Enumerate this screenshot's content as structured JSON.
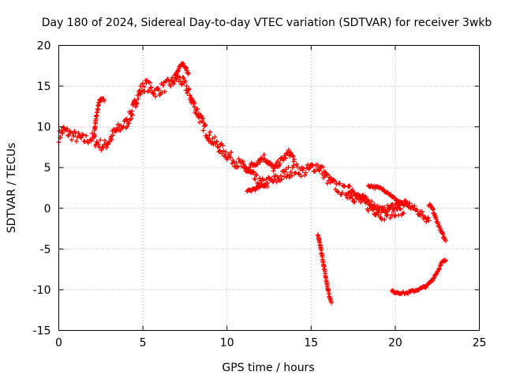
{
  "chart_data": {
    "type": "scatter",
    "title": "Day 180 of 2024, Sidereal Day-to-day VTEC variation (SDTVAR) for receiver 3wkb",
    "xlabel": "GPS time / hours",
    "ylabel": "SDTVAR / TECUs",
    "xlim": [
      0,
      25
    ],
    "ylim": [
      -15,
      20
    ],
    "xticks": [
      0,
      5,
      10,
      15,
      20,
      25
    ],
    "yticks": [
      -15,
      -10,
      -5,
      0,
      5,
      10,
      15,
      20
    ],
    "grid": true,
    "marker": "+",
    "color": "#ff0000",
    "series": [
      {
        "name": "main-trace",
        "x": [
          0.0,
          0.3,
          0.6,
          1.0,
          1.5,
          2.0,
          2.3,
          2.7,
          3.0,
          3.3,
          3.7,
          4.0,
          4.3,
          4.6,
          4.9,
          5.2,
          5.5,
          5.8,
          6.1,
          6.4,
          6.7,
          7.0,
          7.3,
          7.6,
          7.9,
          8.2,
          8.5,
          8.8,
          9.1,
          9.4,
          9.7,
          10.0,
          10.3,
          10.6,
          10.9,
          11.2,
          11.5,
          11.8,
          12.1,
          12.4,
          12.7,
          13.0,
          13.3,
          13.6,
          13.9,
          14.2,
          14.5,
          14.8,
          15.1,
          15.4,
          15.7,
          16.0,
          16.3,
          16.6,
          16.9,
          17.2,
          17.5,
          17.8,
          18.1,
          18.4,
          18.7,
          19.0,
          19.3,
          19.6,
          19.9,
          20.2,
          20.5
        ],
        "y": [
          8.8,
          9.6,
          9.2,
          8.8,
          8.4,
          8.6,
          8.0,
          7.6,
          8.3,
          9.3,
          10.0,
          10.4,
          11.5,
          13.3,
          14.6,
          15.2,
          14.6,
          14.3,
          14.7,
          15.1,
          15.4,
          16.0,
          15.6,
          14.8,
          13.3,
          12.0,
          10.6,
          9.3,
          8.4,
          7.8,
          7.2,
          6.6,
          6.1,
          5.6,
          5.2,
          4.6,
          4.0,
          3.3,
          3.0,
          3.2,
          3.3,
          3.6,
          4.0,
          4.4,
          4.7,
          4.8,
          4.5,
          4.7,
          5.1,
          5.2,
          4.5,
          3.5,
          3.0,
          2.5,
          2.2,
          1.9,
          1.5,
          1.1,
          0.7,
          0.3,
          -0.1,
          -0.4,
          -0.8,
          -0.6,
          -0.3,
          -0.5,
          -0.6
        ],
        "spread": 1.4
      },
      {
        "name": "spike-2-5h",
        "x": [
          2.1,
          2.25,
          2.4,
          2.55,
          2.7
        ],
        "y": [
          9.0,
          11.5,
          13.0,
          13.6,
          13.2
        ],
        "spread": 0.4
      },
      {
        "name": "spike-7-3h",
        "x": [
          6.9,
          7.1,
          7.3,
          7.5,
          7.7
        ],
        "y": [
          16.0,
          17.0,
          17.8,
          17.4,
          16.5
        ],
        "spread": 0.5
      },
      {
        "name": "upper-branch-12h",
        "x": [
          11.0,
          11.3,
          11.6,
          11.9,
          12.2,
          12.5,
          12.8,
          13.1,
          13.4,
          13.7,
          14.0
        ],
        "y": [
          4.9,
          5.1,
          5.4,
          5.9,
          6.3,
          5.5,
          4.8,
          5.6,
          6.2,
          6.9,
          6.0
        ],
        "spread": 0.8
      },
      {
        "name": "low-branch-11h",
        "x": [
          11.2,
          11.5,
          11.8,
          12.1,
          12.4
        ],
        "y": [
          2.0,
          2.3,
          2.5,
          2.8,
          3.1
        ],
        "spread": 0.4
      },
      {
        "name": "tail-branch-18h",
        "x": [
          17.2,
          17.5,
          17.8,
          18.1,
          18.4,
          18.7,
          19.0,
          19.3,
          19.6,
          19.9,
          20.2,
          20.5,
          20.8,
          21.1,
          21.4,
          21.7,
          22.0
        ],
        "y": [
          2.6,
          2.1,
          1.6,
          1.2,
          0.9,
          0.4,
          0.0,
          -0.3,
          0.0,
          0.3,
          0.5,
          0.6,
          0.4,
          0.0,
          -0.5,
          -1.0,
          -1.5
        ],
        "spread": 0.8
      },
      {
        "name": "upper-tail-19h",
        "x": [
          18.4,
          18.8,
          19.2,
          19.6,
          20.0,
          20.4,
          20.8
        ],
        "y": [
          2.8,
          2.6,
          2.4,
          1.9,
          1.1,
          0.6,
          0.3
        ],
        "spread": 0.3
      },
      {
        "name": "late-drop-22h",
        "x": [
          22.0,
          22.2,
          22.4,
          22.6,
          22.8,
          23.0
        ],
        "y": [
          0.4,
          0.0,
          -1.2,
          -2.2,
          -3.2,
          -4.0
        ],
        "spread": 0.4
      },
      {
        "name": "drop-15h",
        "x": [
          15.4,
          15.5,
          15.6,
          15.7,
          15.8,
          15.9,
          16.0,
          16.1,
          16.2
        ],
        "y": [
          -3.2,
          -4.0,
          -5.2,
          -6.4,
          -7.6,
          -8.8,
          -9.9,
          -10.9,
          -11.6
        ],
        "spread": 0.2
      },
      {
        "name": "low-arc-20h",
        "x": [
          19.8,
          20.1,
          20.4,
          20.7,
          21.0,
          21.3,
          21.6,
          21.9,
          22.2,
          22.5,
          22.8,
          23.0
        ],
        "y": [
          -10.2,
          -10.3,
          -10.4,
          -10.4,
          -10.2,
          -10.0,
          -9.8,
          -9.5,
          -8.8,
          -7.8,
          -6.6,
          -6.4
        ],
        "spread": 0.3
      }
    ]
  }
}
